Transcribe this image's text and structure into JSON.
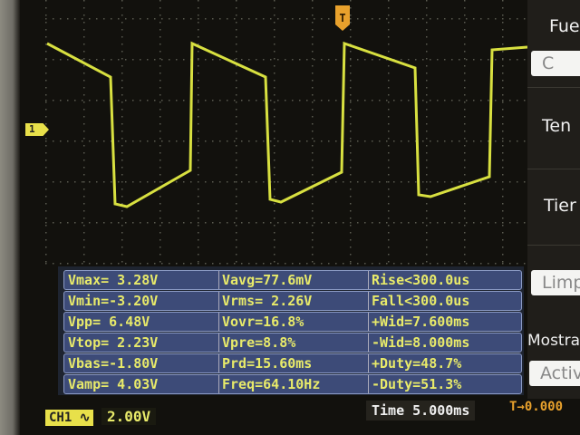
{
  "colors": {
    "trace": "#d8e040",
    "grid": "#5a5a50",
    "measure_bg": "#3d4b78",
    "measure_text": "#e8ea6a",
    "trigger": "#e8a12c"
  },
  "markers": {
    "trigger": "T",
    "channel": "1"
  },
  "measurements": [
    [
      "Vmax= 3.28V",
      "Vavg=77.6mV",
      "Rise<300.0us"
    ],
    [
      "Vmin=-3.20V",
      "Vrms= 2.26V",
      "Fall<300.0us"
    ],
    [
      "Vpp= 6.48V",
      "Vovr=16.8%",
      "+Wid=7.600ms"
    ],
    [
      "Vtop= 2.23V",
      "Vpre=8.8%",
      "-Wid=8.000ms"
    ],
    [
      "Vbas=-1.80V",
      "Prd=15.60ms",
      "+Duty=48.7%"
    ],
    [
      "Vamp= 4.03V",
      "Freq=64.10Hz",
      "-Duty=51.3%"
    ]
  ],
  "status": {
    "channel": "CH1",
    "coupling_icon": "ac-coupling-icon",
    "volts_div": "2.00V",
    "timebase": "Time 5.000ms",
    "trigger_offset": "T→0.000"
  },
  "menu": {
    "source_label": "Fue",
    "source_value": "C",
    "voltage_label": "Ten",
    "time_label": "Tier",
    "clear_button": "Limp",
    "show_label": "Mostra",
    "show_value": "Activ"
  }
}
